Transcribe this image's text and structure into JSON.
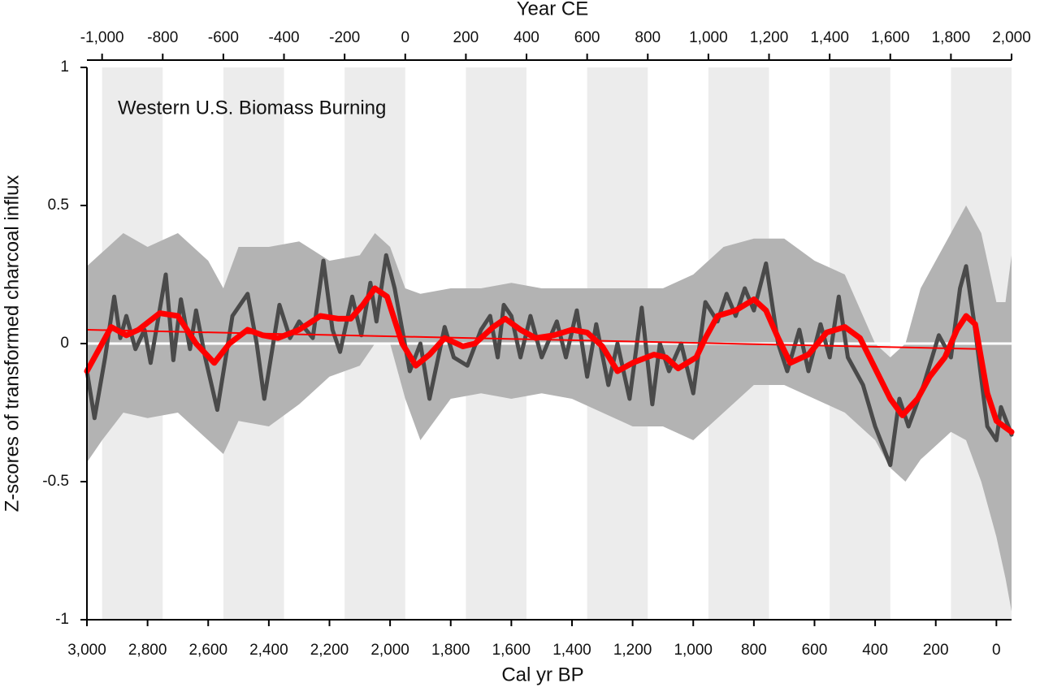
{
  "chart_data": {
    "type": "line",
    "title": "Western U.S. Biomass Burning",
    "xlabel": "Cal yr BP",
    "x2label": "Year CE",
    "ylabel": "Z-scores of transformed charcoal influx",
    "xlim": [
      3000,
      -50
    ],
    "xticks": [
      {
        "value": 3000,
        "label": "3,000"
      },
      {
        "value": 2800,
        "label": "2,800"
      },
      {
        "value": 2600,
        "label": "2,600"
      },
      {
        "value": 2400,
        "label": "2,400"
      },
      {
        "value": 2200,
        "label": "2,200"
      },
      {
        "value": 2000,
        "label": "2,000"
      },
      {
        "value": 1800,
        "label": "1,800"
      },
      {
        "value": 1600,
        "label": "1,600"
      },
      {
        "value": 1400,
        "label": "1,400"
      },
      {
        "value": 1200,
        "label": "1,200"
      },
      {
        "value": 1000,
        "label": "1,000"
      },
      800,
      600,
      400,
      200,
      0
    ],
    "x2lim": [
      -1050,
      2000
    ],
    "x2ticks": [
      {
        "value": -1000,
        "label": "-1,000"
      },
      -800,
      -600,
      -400,
      -200,
      0,
      200,
      400,
      600,
      800,
      {
        "value": 1000,
        "label": "1,000"
      },
      {
        "value": 1200,
        "label": "1,200"
      },
      {
        "value": 1400,
        "label": "1,400"
      },
      {
        "value": 1600,
        "label": "1,600"
      },
      {
        "value": 1800,
        "label": "1,800"
      },
      {
        "value": 2000,
        "label": "2,000"
      }
    ],
    "ylim": [
      -1,
      1
    ],
    "yticks": [
      1,
      0.5,
      0,
      -0.5,
      -1
    ],
    "zero_line": {
      "value": 0,
      "color": "#ffffff"
    },
    "shaded_spans": {
      "color": "#ececec",
      "x": [
        [
          2950,
          2750
        ],
        [
          2550,
          2350
        ],
        [
          2150,
          1950
        ],
        [
          1750,
          1550
        ],
        [
          1350,
          1150
        ],
        [
          950,
          750
        ],
        [
          550,
          350
        ],
        [
          150,
          -50
        ]
      ]
    },
    "band": {
      "color": "#b3b3b3",
      "x": [
        3000,
        2950,
        2880,
        2800,
        2700,
        2600,
        2550,
        2500,
        2400,
        2300,
        2200,
        2100,
        2050,
        2000,
        1950,
        1900,
        1800,
        1700,
        1600,
        1500,
        1400,
        1300,
        1200,
        1100,
        1000,
        900,
        800,
        700,
        600,
        500,
        400,
        350,
        300,
        250,
        150,
        100,
        50,
        0,
        -30,
        -50
      ],
      "upper": [
        0.28,
        0.33,
        0.4,
        0.35,
        0.4,
        0.3,
        0.2,
        0.35,
        0.35,
        0.37,
        0.3,
        0.32,
        0.4,
        0.35,
        0.2,
        0.18,
        0.2,
        0.2,
        0.22,
        0.2,
        0.2,
        0.2,
        0.2,
        0.2,
        0.25,
        0.35,
        0.38,
        0.38,
        0.3,
        0.25,
        0.0,
        -0.05,
        0.0,
        0.2,
        0.4,
        0.5,
        0.4,
        0.15,
        0.15,
        0.32
      ],
      "lower": [
        -0.43,
        -0.35,
        -0.25,
        -0.27,
        -0.25,
        -0.35,
        -0.4,
        -0.28,
        -0.3,
        -0.22,
        -0.12,
        -0.08,
        0.0,
        0.0,
        -0.2,
        -0.35,
        -0.2,
        -0.18,
        -0.2,
        -0.18,
        -0.2,
        -0.25,
        -0.3,
        -0.3,
        -0.35,
        -0.25,
        -0.15,
        -0.15,
        -0.2,
        -0.25,
        -0.35,
        -0.45,
        -0.5,
        -0.42,
        -0.32,
        -0.35,
        -0.5,
        -0.7,
        -0.85,
        -0.97
      ]
    },
    "series": [
      {
        "color": "#4a4a4a",
        "width": 5,
        "x": [
          3000,
          2975,
          2940,
          2910,
          2890,
          2870,
          2840,
          2810,
          2790,
          2740,
          2715,
          2690,
          2660,
          2640,
          2610,
          2570,
          2520,
          2470,
          2440,
          2415,
          2365,
          2330,
          2300,
          2255,
          2220,
          2190,
          2165,
          2125,
          2095,
          2065,
          2045,
          2013,
          1985,
          1935,
          1900,
          1870,
          1820,
          1790,
          1745,
          1700,
          1670,
          1645,
          1625,
          1600,
          1570,
          1537,
          1500,
          1450,
          1420,
          1384,
          1350,
          1320,
          1280,
          1250,
          1210,
          1170,
          1135,
          1110,
          1080,
          1040,
          1000,
          960,
          920,
          890,
          860,
          830,
          800,
          760,
          720,
          690,
          650,
          620,
          580,
          550,
          520,
          490,
          440,
          400,
          350,
          320,
          290,
          240,
          190,
          150,
          120,
          100,
          70,
          30,
          0,
          -15,
          -50
        ],
        "values": [
          -0.1,
          -0.27,
          -0.05,
          0.17,
          0.02,
          0.1,
          -0.02,
          0.05,
          -0.07,
          0.25,
          -0.06,
          0.16,
          -0.02,
          0.12,
          -0.05,
          -0.24,
          0.1,
          0.18,
          0.0,
          -0.2,
          0.14,
          0.02,
          0.08,
          0.02,
          0.3,
          0.05,
          -0.03,
          0.17,
          0.03,
          0.22,
          0.08,
          0.32,
          0.2,
          -0.1,
          0.0,
          -0.2,
          0.06,
          -0.05,
          -0.08,
          0.05,
          0.1,
          -0.05,
          0.14,
          0.1,
          -0.05,
          0.1,
          -0.05,
          0.08,
          -0.05,
          0.12,
          -0.12,
          0.07,
          -0.15,
          0.0,
          -0.2,
          0.13,
          -0.22,
          0.0,
          -0.1,
          0.0,
          -0.18,
          0.15,
          0.08,
          0.18,
          0.1,
          0.2,
          0.12,
          0.29,
          0.0,
          -0.1,
          0.05,
          -0.1,
          0.07,
          -0.05,
          0.17,
          -0.05,
          -0.15,
          -0.3,
          -0.44,
          -0.2,
          -0.3,
          -0.15,
          0.03,
          -0.05,
          0.2,
          0.28,
          0.05,
          -0.3,
          -0.35,
          -0.23,
          -0.33
        ]
      },
      {
        "color": "#ff0000",
        "width": 2,
        "x": [
          3000,
          50
        ],
        "values": [
          0.05,
          -0.02
        ]
      },
      {
        "color": "#ff0000",
        "width": 7,
        "x": [
          3000,
          2950,
          2920,
          2870,
          2830,
          2760,
          2700,
          2640,
          2580,
          2530,
          2470,
          2420,
          2370,
          2300,
          2230,
          2170,
          2130,
          2090,
          2050,
          2010,
          1960,
          1915,
          1870,
          1820,
          1760,
          1720,
          1660,
          1620,
          1570,
          1520,
          1460,
          1400,
          1350,
          1300,
          1250,
          1200,
          1130,
          1090,
          1050,
          990,
          960,
          920,
          860,
          800,
          760,
          720,
          680,
          620,
          560,
          500,
          450,
          400,
          350,
          310,
          260,
          220,
          170,
          130,
          100,
          70,
          30,
          0,
          -50
        ],
        "values": [
          -0.1,
          0.0,
          0.06,
          0.03,
          0.05,
          0.11,
          0.1,
          0.0,
          -0.07,
          0.0,
          0.05,
          0.03,
          0.02,
          0.05,
          0.1,
          0.09,
          0.09,
          0.14,
          0.2,
          0.17,
          0.0,
          -0.08,
          -0.04,
          0.02,
          -0.01,
          0.0,
          0.06,
          0.09,
          0.05,
          0.02,
          0.03,
          0.05,
          0.04,
          -0.01,
          -0.1,
          -0.07,
          -0.04,
          -0.05,
          -0.09,
          -0.05,
          0.02,
          0.1,
          0.12,
          0.16,
          0.12,
          0.02,
          -0.07,
          -0.04,
          0.04,
          0.06,
          0.02,
          -0.09,
          -0.2,
          -0.26,
          -0.2,
          -0.12,
          -0.05,
          0.05,
          0.1,
          0.07,
          -0.18,
          -0.28,
          -0.32
        ]
      }
    ]
  }
}
